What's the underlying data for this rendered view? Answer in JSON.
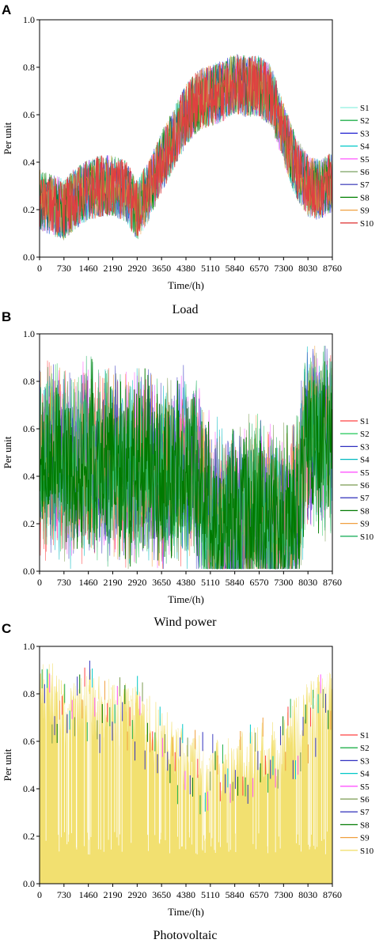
{
  "chart_data": [
    {
      "panel": "A",
      "caption": "Load",
      "type": "line",
      "xlabel": "Time/(h)",
      "ylabel": "Per unit",
      "xlim": [
        0,
        8760
      ],
      "ylim": [
        0.0,
        1.0
      ],
      "xticks": [
        "0",
        "730",
        "1460",
        "2190",
        "2920",
        "3650",
        "4380",
        "5110",
        "5840",
        "6570",
        "7300",
        "8030",
        "8760"
      ],
      "yticks": [
        "0.0",
        "0.2",
        "0.4",
        "0.6",
        "0.8",
        "1.0"
      ],
      "legend_position": "right",
      "series_colors": [
        "#8ff0e0",
        "#22b14c",
        "#2020d0",
        "#00c8c8",
        "#ff66ff",
        "#7aa060",
        "#5050c0",
        "#008000",
        "#f0a040",
        "#e04040"
      ],
      "series": [
        {
          "name": "S1",
          "profile_x": [
            0,
            365,
            730,
            1095,
            1460,
            1825,
            2190,
            2555,
            2920,
            3285,
            3650,
            4015,
            4380,
            4745,
            5110,
            5475,
            5840,
            6205,
            6570,
            6935,
            7300,
            7665,
            8030,
            8395,
            8760
          ],
          "mean": [
            0.24,
            0.22,
            0.2,
            0.25,
            0.28,
            0.3,
            0.3,
            0.28,
            0.2,
            0.28,
            0.4,
            0.5,
            0.6,
            0.66,
            0.68,
            0.7,
            0.73,
            0.72,
            0.72,
            0.68,
            0.52,
            0.38,
            0.3,
            0.28,
            0.32
          ],
          "half_band": 0.13
        }
      ]
    },
    {
      "panel": "B",
      "caption": "Wind power",
      "type": "line",
      "xlabel": "Time/(h)",
      "ylabel": "Per unit",
      "xlim": [
        0,
        8760
      ],
      "ylim": [
        0.0,
        1.0
      ],
      "xticks": [
        "0",
        "730",
        "1460",
        "2190",
        "2920",
        "3650",
        "4380",
        "5110",
        "5840",
        "6570",
        "7300",
        "8030",
        "8760"
      ],
      "yticks": [
        "0.0",
        "0.2",
        "0.4",
        "0.6",
        "0.8",
        "1.0"
      ],
      "legend_position": "right",
      "series_colors": [
        "#ff4040",
        "#33cc66",
        "#3030c0",
        "#00b8c0",
        "#ff55ff",
        "#7a9a50",
        "#4040c0",
        "#007a00",
        "#f0a040",
        "#20b060"
      ],
      "series": [
        {
          "name": "S1",
          "profile_x": [
            0,
            365,
            730,
            1095,
            1460,
            1825,
            2190,
            2555,
            2920,
            3285,
            3650,
            4015,
            4380,
            4745,
            5110,
            5475,
            5840,
            6205,
            6570,
            6935,
            7300,
            7665,
            8030,
            8395,
            8760
          ],
          "mean": [
            0.45,
            0.5,
            0.45,
            0.42,
            0.5,
            0.45,
            0.45,
            0.42,
            0.45,
            0.42,
            0.38,
            0.4,
            0.45,
            0.38,
            0.22,
            0.2,
            0.18,
            0.22,
            0.25,
            0.22,
            0.2,
            0.25,
            0.6,
            0.55,
            0.55
          ],
          "half_band": 0.3
        }
      ]
    },
    {
      "panel": "C",
      "caption": "Photovoltaic",
      "type": "area",
      "xlabel": "Time/(h)",
      "ylabel": "Per unit",
      "xlim": [
        0,
        8760
      ],
      "ylim": [
        0.0,
        1.0
      ],
      "xticks": [
        "0",
        "730",
        "1460",
        "2190",
        "2920",
        "3650",
        "4380",
        "5110",
        "5840",
        "6570",
        "7300",
        "8030",
        "8760"
      ],
      "yticks": [
        "0.0",
        "0.2",
        "0.4",
        "0.6",
        "0.8",
        "1.0"
      ],
      "legend_position": "right",
      "series_colors": [
        "#ff4040",
        "#22b14c",
        "#3030c0",
        "#00c8c8",
        "#ff55ff",
        "#7a9a50",
        "#4040c0",
        "#007a00",
        "#f0a040",
        "#f2e070"
      ],
      "series": [
        {
          "name": "S1",
          "profile_x": [
            0,
            365,
            730,
            1095,
            1460,
            1825,
            2190,
            2555,
            2920,
            3285,
            3650,
            4015,
            4380,
            4745,
            5110,
            5475,
            5840,
            6205,
            6570,
            6935,
            7300,
            7665,
            8030,
            8395,
            8760
          ],
          "mean": [
            0.82,
            0.8,
            0.72,
            0.72,
            0.78,
            0.75,
            0.72,
            0.72,
            0.72,
            0.68,
            0.62,
            0.55,
            0.52,
            0.5,
            0.48,
            0.5,
            0.5,
            0.52,
            0.55,
            0.55,
            0.58,
            0.65,
            0.72,
            0.75,
            0.78
          ],
          "half_band": 0.15
        }
      ]
    }
  ],
  "legend_labels": [
    "S1",
    "S2",
    "S3",
    "S4",
    "S5",
    "S6",
    "S7",
    "S8",
    "S9",
    "S10"
  ]
}
